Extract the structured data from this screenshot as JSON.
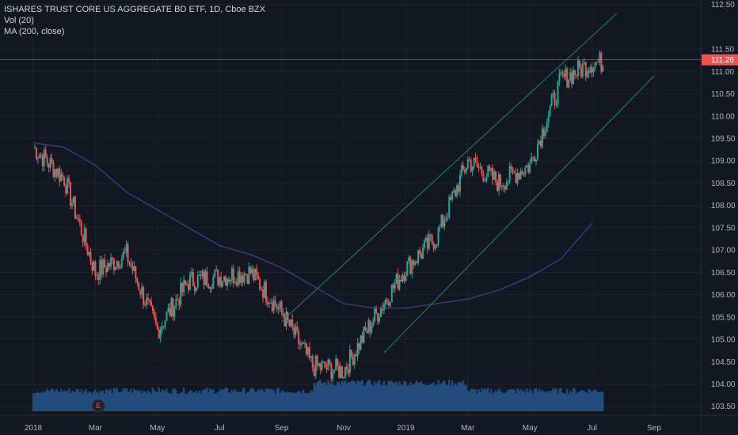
{
  "legend": {
    "title": "ISHARES TRUST CORE US AGGREGATE BD ETF, 1D, Cboe BZX",
    "indicator1": "Vol (20)",
    "indicator2": "MA (200, close)"
  },
  "colors": {
    "background": "#131722",
    "grid": "#1e222d",
    "up": "#26a69a",
    "down": "#ef5350",
    "ma": "#3f3f85",
    "channel": "#1e8a5c",
    "volume": "#26538a",
    "last_price": "#ef5350"
  },
  "event_marker": {
    "label": "E",
    "x": "2018-03"
  },
  "chart_data": {
    "type": "candlestick",
    "title": "ISHARES TRUST CORE US AGGREGATE BD ETF, 1D, Cboe BZX",
    "x_ticks": [
      "2018",
      "Mar",
      "May",
      "Jul",
      "Sep",
      "Nov",
      "2019",
      "Mar",
      "May",
      "Jul",
      "Sep"
    ],
    "y_ticks": [
      "103.50",
      "104.00",
      "104.50",
      "105.00",
      "105.50",
      "106.00",
      "106.50",
      "107.00",
      "107.50",
      "108.00",
      "108.50",
      "109.00",
      "109.50",
      "110.00",
      "110.50",
      "111.00",
      "111.50",
      "112.50"
    ],
    "ylim": [
      103.3,
      112.6
    ],
    "last_price": 111.26,
    "last_price_label": "111.26",
    "price_path_months": [
      "Jan 2018",
      "Feb 2018",
      "Mar 2018",
      "Apr 2018",
      "May 2018",
      "Jun 2018",
      "Jul 2018",
      "Aug 2018",
      "Sep 2018",
      "Oct 2018",
      "Nov 2018",
      "Dec 2018",
      "Jan 2019",
      "Feb 2019",
      "Mar 2019",
      "Apr 2019",
      "May 2019",
      "Jun 2019",
      "Jul 2019"
    ],
    "price_path_values": [
      109.3,
      108.6,
      106.5,
      106.9,
      105.2,
      106.3,
      106.4,
      106.5,
      105.6,
      104.4,
      104.3,
      105.5,
      106.6,
      107.3,
      109.0,
      108.5,
      108.9,
      110.8,
      111.2
    ],
    "ma200_values": [
      109.4,
      109.3,
      108.9,
      108.3,
      107.9,
      107.5,
      107.1,
      106.9,
      106.6,
      106.2,
      105.8,
      105.7,
      105.7,
      105.8,
      105.9,
      106.1,
      106.4,
      106.8,
      107.6
    ],
    "channel_upper": [
      [
        105.4,
        "Sep 2018"
      ],
      [
        112.3,
        "Jul 2019"
      ]
    ],
    "channel_lower": [
      [
        104.7,
        "Dec 2018"
      ],
      [
        110.9,
        "Aug 2019"
      ]
    ],
    "series": [
      {
        "name": "Vol (20)"
      },
      {
        "name": "MA (200, close)"
      }
    ]
  }
}
